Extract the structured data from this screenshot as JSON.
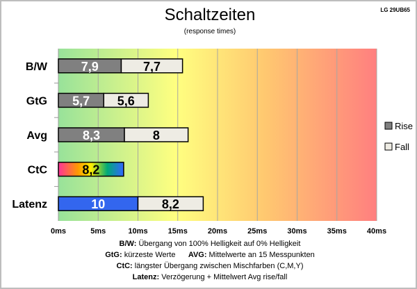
{
  "chart_data": {
    "type": "bar",
    "orientation": "horizontal-stacked",
    "title": "Schaltzeiten",
    "subtitle": "(response times)",
    "brand": "LG 29UB65",
    "categories": [
      "B/W",
      "GtG",
      "Avg",
      "CtC",
      "Latenz"
    ],
    "series": [
      {
        "name": "Rise",
        "values": [
          7.9,
          5.7,
          8.3,
          8.2,
          10
        ],
        "labels": [
          "7,9",
          "5,7",
          "8,3",
          "8,2",
          "10"
        ],
        "color": "#808080"
      },
      {
        "name": "Fall",
        "values": [
          7.7,
          5.6,
          8,
          null,
          8.2
        ],
        "labels": [
          "7,7",
          "5,6",
          "8",
          null,
          "8,2"
        ],
        "color": "#eeece4"
      }
    ],
    "special_colors": {
      "CtC": "rainbow-gradient",
      "Latenz": "#3366ee"
    },
    "xlim": [
      0,
      40
    ],
    "xticks": [
      "0ms",
      "5ms",
      "10ms",
      "15ms",
      "20ms",
      "25ms",
      "30ms",
      "35ms",
      "40ms"
    ],
    "grid": true,
    "legend": "right",
    "background": "gradient green-yellow-red"
  },
  "notes": [
    {
      "key": "B/W:",
      "text": " Übergang von 100% Helligkeit auf 0% Helligkeit"
    },
    {
      "key": "GtG:",
      "text": " kürzeste Werte",
      "key2": "AVG:",
      "text2": " Mittelwerte an 15 Messpunkten"
    },
    {
      "key": "CtC:",
      "text": " längster Übergang zwischen Mischfarben (C,M,Y)"
    },
    {
      "key": "Latenz:",
      "text": " Verzögerung + Mittelwert Avg rise/fall"
    }
  ]
}
